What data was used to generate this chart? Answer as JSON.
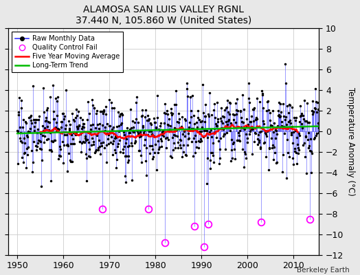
{
  "title": "ALAMOSA SAN LUIS VALLEY RGNL",
  "subtitle": "37.440 N, 105.860 W (United States)",
  "ylabel": "Temperature Anomaly (°C)",
  "watermark": "Berkeley Earth",
  "year_start": 1950,
  "year_end": 2015,
  "ylim": [
    -12,
    10
  ],
  "yticks": [
    -12,
    -10,
    -8,
    -6,
    -4,
    -2,
    0,
    2,
    4,
    6,
    8,
    10
  ],
  "xticks": [
    1950,
    1960,
    1970,
    1980,
    1990,
    2000,
    2010
  ],
  "bg_color": "#e8e8e8",
  "plot_bg_color": "#ffffff",
  "line_color": "#3333ff",
  "dot_color": "#000000",
  "ma_color": "#ff0000",
  "trend_color": "#00bb00",
  "qc_color": "#ff00ff",
  "seed": 17,
  "n_months": 792,
  "qc_years": [
    1968.5,
    1978.5,
    1982.0,
    1988.5,
    1990.5,
    1991.5,
    2003.0,
    2013.5
  ],
  "qc_vals": [
    -7.5,
    -7.5,
    -10.8,
    -9.2,
    -11.2,
    -9.0,
    -8.8,
    -8.5
  ]
}
